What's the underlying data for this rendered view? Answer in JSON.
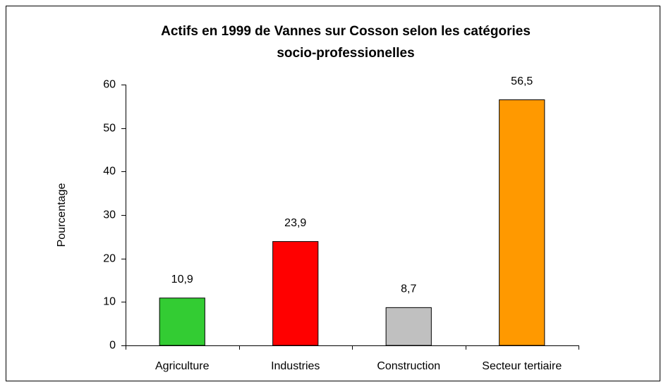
{
  "chart_data": {
    "type": "bar",
    "title": [
      "Actifs en 1999 de Vannes sur Cosson selon les catégories",
      "socio-professionelles"
    ],
    "y_label": "Pourcentage",
    "categories": [
      "Agriculture",
      "Industries",
      "Construction",
      "Secteur tertiaire"
    ],
    "values": [
      10.9,
      23.9,
      8.7,
      56.5
    ],
    "value_labels": [
      "10,9",
      "23,9",
      "8,7",
      "56,5"
    ],
    "colors": [
      "#33cc33",
      "#ff0000",
      "#c0c0c0",
      "#ff9900"
    ],
    "ylim": [
      0,
      60
    ],
    "yticks": [
      0,
      10,
      20,
      30,
      40,
      50,
      60
    ],
    "grid": false
  }
}
